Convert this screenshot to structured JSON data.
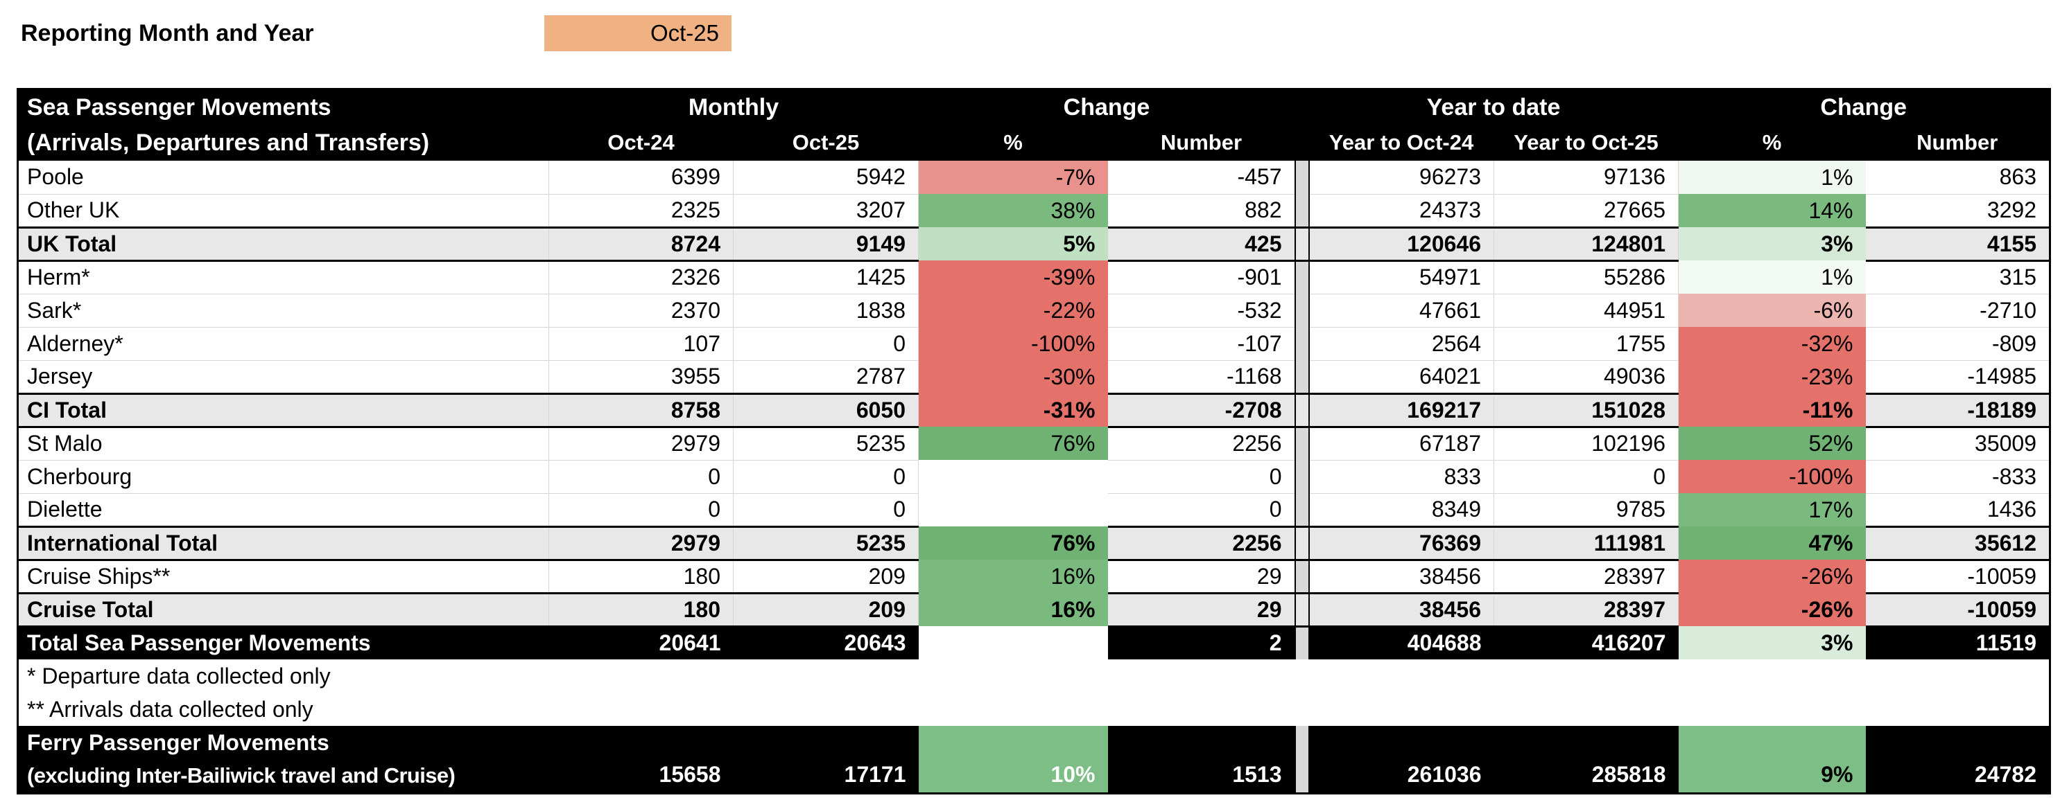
{
  "report": {
    "label": "Reporting Month and Year",
    "value": "Oct-25",
    "value_bg": "#F0B283"
  },
  "colors": {
    "header_bg": "#000000",
    "total_band_bg": "#E8E8E8",
    "divider_bg": "#D9D9D9",
    "gridline": "#D6D6D6"
  },
  "table": {
    "header": {
      "title_line1": "Sea Passenger Movements",
      "title_line2": "(Arrivals, Departures and Transfers)",
      "monthly": "Monthly",
      "change_monthly": "Change",
      "ytd": "Year to date",
      "change_ytd": "Change",
      "oct24": "Oct-24",
      "oct25": "Oct-25",
      "pct1": "%",
      "number1": "Number",
      "ytd24": "Year to Oct-24",
      "ytd25": "Year to Oct-25",
      "pct2": "%",
      "number2": "Number"
    },
    "rows": [
      {
        "label": "Poole",
        "type": "normal",
        "m24": "6399",
        "m25": "5942",
        "mpct": "-7%",
        "mpct_bg": "#E9918C",
        "mnum": "-457",
        "y24": "96273",
        "y25": "97136",
        "ypct": "1%",
        "ypct_bg": "#F1F8F1",
        "ynum": "863"
      },
      {
        "label": "Other UK",
        "type": "normal",
        "m24": "2325",
        "m25": "3207",
        "mpct": "38%",
        "mpct_bg": "#7ABA7F",
        "mnum": "882",
        "y24": "24373",
        "y25": "27665",
        "ypct": "14%",
        "ypct_bg": "#7ABA7F",
        "ynum": "3292"
      },
      {
        "label": "UK Total",
        "type": "total",
        "m24": "8724",
        "m25": "9149",
        "mpct": "5%",
        "mpct_bg": "#BFE0C1",
        "mnum": "425",
        "y24": "120646",
        "y25": "124801",
        "ypct": "3%",
        "ypct_bg": "#D5EAD6",
        "ynum": "4155"
      },
      {
        "label": "Herm*",
        "type": "normal",
        "m24": "2326",
        "m25": "1425",
        "mpct": "-39%",
        "mpct_bg": "#E5716B",
        "mnum": "-901",
        "y24": "54971",
        "y25": "55286",
        "ypct": "1%",
        "ypct_bg": "#F3F9F3",
        "ynum": "315"
      },
      {
        "label": "Sark*",
        "type": "normal",
        "m24": "2370",
        "m25": "1838",
        "mpct": "-22%",
        "mpct_bg": "#E5716B",
        "mnum": "-532",
        "y24": "47661",
        "y25": "44951",
        "ypct": "-6%",
        "ypct_bg": "#EDB5B0",
        "ynum": "-2710"
      },
      {
        "label": "Alderney*",
        "type": "normal",
        "m24": "107",
        "m25": "0",
        "mpct": "-100%",
        "mpct_bg": "#E5716B",
        "mnum": "-107",
        "y24": "2564",
        "y25": "1755",
        "ypct": "-32%",
        "ypct_bg": "#E5716B",
        "ynum": "-809"
      },
      {
        "label": "Jersey",
        "type": "normal",
        "m24": "3955",
        "m25": "2787",
        "mpct": "-30%",
        "mpct_bg": "#E5716B",
        "mnum": "-1168",
        "y24": "64021",
        "y25": "49036",
        "ypct": "-23%",
        "ypct_bg": "#E5716B",
        "ynum": "-14985"
      },
      {
        "label": "CI Total",
        "type": "total",
        "m24": "8758",
        "m25": "6050",
        "mpct": "-31%",
        "mpct_bg": "#E5716B",
        "mnum": "-2708",
        "y24": "169217",
        "y25": "151028",
        "ypct": "-11%",
        "ypct_bg": "#E5716B",
        "ynum": "-18189"
      },
      {
        "label": "St Malo",
        "type": "normal",
        "m24": "2979",
        "m25": "5235",
        "mpct": "76%",
        "mpct_bg": "#6FB273",
        "mnum": "2256",
        "y24": "67187",
        "y25": "102196",
        "ypct": "52%",
        "ypct_bg": "#6FB273",
        "ynum": "35009"
      },
      {
        "label": "Cherbourg",
        "type": "normal",
        "m24": "0",
        "m25": "0",
        "mpct": "",
        "mpct_bg": "#FFFFFF",
        "mnum": "0",
        "y24": "833",
        "y25": "0",
        "ypct": "-100%",
        "ypct_bg": "#E5716B",
        "ynum": "-833"
      },
      {
        "label": "Dielette",
        "type": "normal",
        "m24": "0",
        "m25": "0",
        "mpct": "",
        "mpct_bg": "#FFFFFF",
        "mnum": "0",
        "y24": "8349",
        "y25": "9785",
        "ypct": "17%",
        "ypct_bg": "#7ABA7F",
        "ynum": "1436"
      },
      {
        "label": "International Total",
        "type": "total",
        "m24": "2979",
        "m25": "5235",
        "mpct": "76%",
        "mpct_bg": "#6FB273",
        "mnum": "2256",
        "y24": "76369",
        "y25": "111981",
        "ypct": "47%",
        "ypct_bg": "#6FB273",
        "ynum": "35612"
      },
      {
        "label": "Cruise Ships**",
        "type": "normal",
        "m24": "180",
        "m25": "209",
        "mpct": "16%",
        "mpct_bg": "#7ABA7F",
        "mnum": "29",
        "y24": "38456",
        "y25": "28397",
        "ypct": "-26%",
        "ypct_bg": "#E5716B",
        "ynum": "-10059"
      },
      {
        "label": "Cruise Total",
        "type": "total",
        "m24": "180",
        "m25": "209",
        "mpct": "16%",
        "mpct_bg": "#7ABA7F",
        "mnum": "29",
        "y24": "38456",
        "y25": "28397",
        "ypct": "-26%",
        "ypct_bg": "#E5716B",
        "ynum": "-10059"
      }
    ],
    "total_row": {
      "label": "Total Sea Passenger Movements",
      "m24": "20641",
      "m25": "20643",
      "mpct": "",
      "mpct_bg": "#FFFFFF",
      "mnum": "2",
      "y24": "404688",
      "y25": "416207",
      "ypct": "3%",
      "ypct_bg": "#D9ECDC",
      "ypct_fg": "#000000",
      "ynum": "11519"
    },
    "footnotes": [
      "* Departure data collected only",
      "** Arrivals data collected only"
    ],
    "ferry_row": {
      "label_line1": "Ferry Passenger Movements",
      "label_line2": "(excluding Inter-Bailiwick travel and Cruise)",
      "m24": "15658",
      "m25": "17171",
      "mpct": "10%",
      "mpct_bg": "#7CBE85",
      "mpct_fg": "#FFFFFF",
      "mnum": "1513",
      "y24": "261036",
      "y25": "285818",
      "ypct": "9%",
      "ypct_bg": "#7CBE85",
      "ypct_fg": "#000000",
      "ynum": "24782"
    }
  }
}
